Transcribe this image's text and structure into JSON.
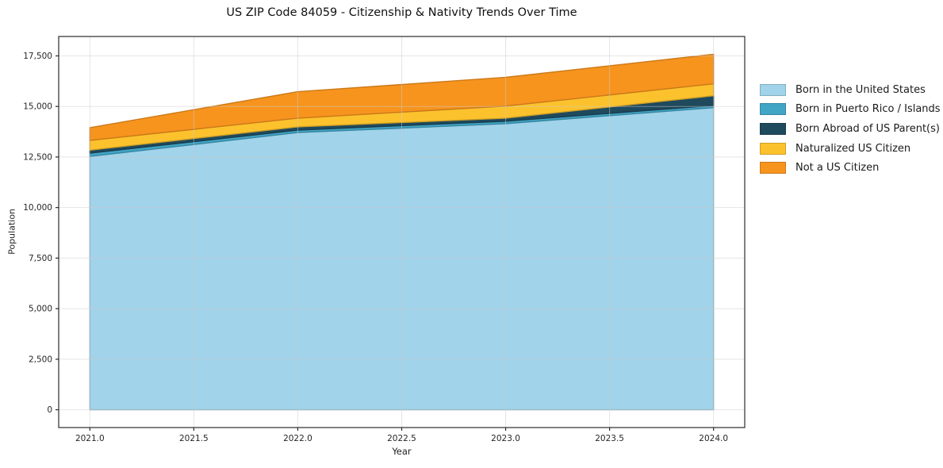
{
  "chart_data": {
    "type": "area",
    "stacked": true,
    "title": "US ZIP Code 84059 - Citizenship & Nativity Trends Over Time",
    "xlabel": "Year",
    "ylabel": "Population",
    "x": [
      2021,
      2022,
      2023,
      2024
    ],
    "series": [
      {
        "name": "Born in the United States",
        "color": "#A1D3EA",
        "values": [
          12530,
          13710,
          14150,
          14940
        ]
      },
      {
        "name": "Born in Puerto Rico / Islands",
        "color": "#41A5C6",
        "values": [
          160,
          120,
          120,
          110
        ]
      },
      {
        "name": "Born Abroad of US Parent(s)",
        "color": "#1F4A5E",
        "values": [
          150,
          160,
          150,
          480
        ]
      },
      {
        "name": "Naturalized US Citizen",
        "color": "#FCC22D",
        "values": [
          480,
          430,
          600,
          590
        ]
      },
      {
        "name": "Not a US Citizen",
        "color": "#F7941E",
        "values": [
          630,
          1310,
          1420,
          1460
        ]
      }
    ],
    "totals": [
      13950,
      15730,
      16440,
      17580
    ],
    "xticks": {
      "values": [
        2021.0,
        2021.5,
        2022.0,
        2022.5,
        2023.0,
        2023.5,
        2024.0
      ],
      "labels": [
        "2021.0",
        "2021.5",
        "2022.0",
        "2022.5",
        "2023.0",
        "2023.5",
        "2024.0"
      ]
    },
    "yticks": {
      "values": [
        0,
        2500,
        5000,
        7500,
        10000,
        12500,
        15000,
        17500
      ],
      "labels": [
        "0",
        "2,500",
        "5,000",
        "7,500",
        "10,000",
        "12,500",
        "15,000",
        "17,500"
      ]
    },
    "xlim": [
      2020.85,
      2024.15
    ],
    "ylim": [
      -880,
      18460
    ],
    "grid": true,
    "legend_position": "right of plot, vertical"
  },
  "colors": {
    "spine": "#2b2b2b",
    "grid": "#cccccc",
    "tick_text": "#262626",
    "background": "#ffffff"
  }
}
